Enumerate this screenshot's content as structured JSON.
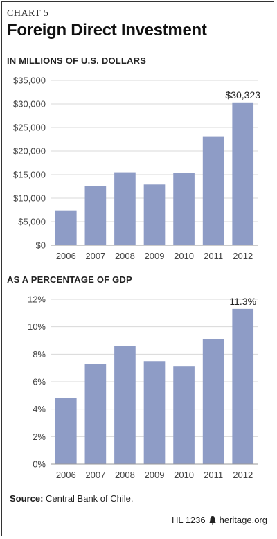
{
  "header": {
    "chart_number": "CHART 5",
    "title": "Foreign Direct Investment"
  },
  "chart_data": [
    {
      "type": "bar",
      "title": "IN MILLIONS OF U.S. DOLLARS",
      "categories": [
        "2006",
        "2007",
        "2008",
        "2009",
        "2010",
        "2011",
        "2012"
      ],
      "values": [
        7400,
        12600,
        15500,
        12900,
        15400,
        23000,
        30323
      ],
      "ylim": [
        0,
        35000
      ],
      "yticks": [
        0,
        5000,
        10000,
        15000,
        20000,
        25000,
        30000,
        35000
      ],
      "ytick_labels": [
        "$0",
        "$5,000",
        "$10,000",
        "$15,000",
        "$20,000",
        "$25,000",
        "$30,000",
        "$35,000"
      ],
      "grid": true,
      "bar_color": "#8e9cc6",
      "annotation": {
        "index": 6,
        "text": "$30,323"
      }
    },
    {
      "type": "bar",
      "title": "AS A PERCENTAGE OF GDP",
      "categories": [
        "2006",
        "2007",
        "2008",
        "2009",
        "2010",
        "2011",
        "2012"
      ],
      "values": [
        4.8,
        7.3,
        8.6,
        7.5,
        7.1,
        9.1,
        11.3
      ],
      "ylim": [
        0,
        12
      ],
      "yticks": [
        0,
        2,
        4,
        6,
        8,
        10,
        12
      ],
      "ytick_labels": [
        "0%",
        "2%",
        "4%",
        "6%",
        "8%",
        "10%",
        "12%"
      ],
      "grid": true,
      "bar_color": "#8e9cc6",
      "annotation": {
        "index": 6,
        "text": "11.3%"
      }
    }
  ],
  "source": {
    "label": "Source:",
    "text": "Central Bank of Chile."
  },
  "footer": {
    "code": "HL 1236",
    "site": "heritage.org"
  }
}
